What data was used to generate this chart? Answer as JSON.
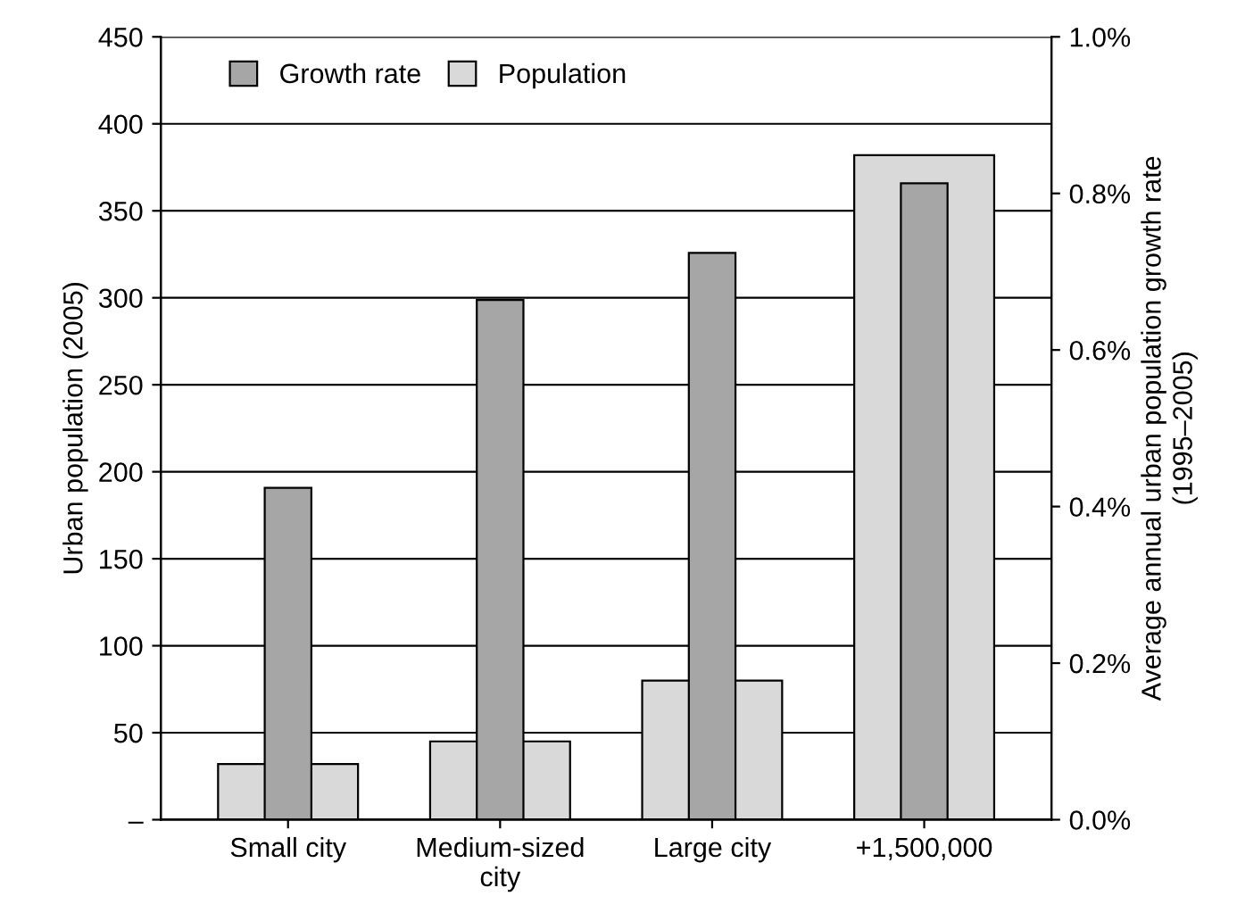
{
  "chart_data": {
    "type": "bar",
    "categories": [
      "Small city",
      "Medium-sized\ncity",
      "Large city",
      "+1,500,000"
    ],
    "series": [
      {
        "name": "Growth rate",
        "color": "#a6a6a6",
        "axis": "y2",
        "values": [
          0.424,
          0.664,
          0.724,
          0.813
        ]
      },
      {
        "name": "Population",
        "color": "#d9d9d9",
        "axis": "y",
        "values": [
          32,
          45,
          80,
          382
        ]
      }
    ],
    "ylabel": "Urban population (2005)",
    "y2label": "Average annual urban population growth rate\n(1995–2005)",
    "ylim": [
      0,
      450
    ],
    "yticks": [
      {
        "value": 0,
        "label": "–"
      },
      50,
      100,
      150,
      200,
      250,
      300,
      350,
      400,
      450
    ],
    "y2lim": [
      0,
      1.0
    ],
    "y2ticks": [
      {
        "value": 0,
        "label": "0.0%"
      },
      {
        "value": 0.2,
        "label": "0.2%"
      },
      {
        "value": 0.4,
        "label": "0.4%"
      },
      {
        "value": 0.6,
        "label": "0.6%"
      },
      {
        "value": 0.8,
        "label": "0.8%"
      },
      {
        "value": 1.0,
        "label": "1.0%"
      }
    ],
    "grid": "y",
    "legend": "top left"
  }
}
